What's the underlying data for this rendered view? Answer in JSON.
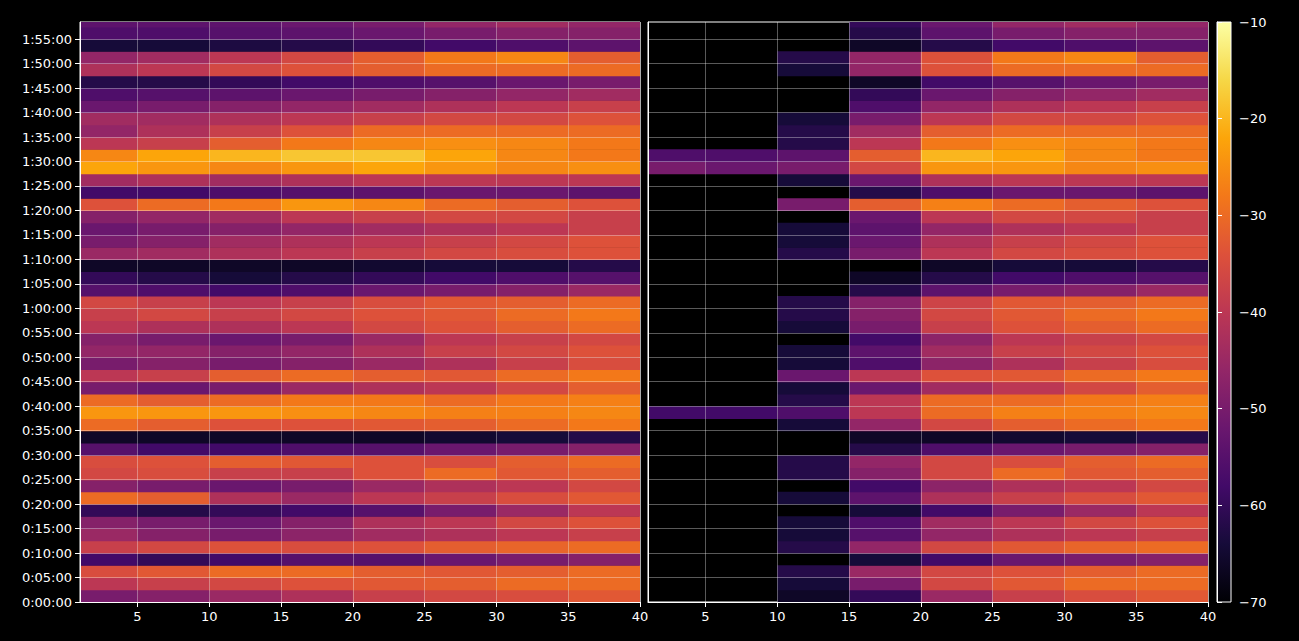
{
  "chart_data": {
    "type": "heatmap",
    "color": "inferno",
    "grid": true,
    "xlim": [
      1,
      40
    ],
    "xticks": [
      5,
      10,
      15,
      20,
      25,
      30,
      35,
      40
    ],
    "ylim": [
      0,
      7110
    ],
    "yticks": [
      {
        "value": 0,
        "label": "0:00:00"
      },
      {
        "value": 300,
        "label": "0:05:00"
      },
      {
        "value": 600,
        "label": "0:10:00"
      },
      {
        "value": 900,
        "label": "0:15:00"
      },
      {
        "value": 1200,
        "label": "0:20:00"
      },
      {
        "value": 1500,
        "label": "0:25:00"
      },
      {
        "value": 1800,
        "label": "0:30:00"
      },
      {
        "value": 2100,
        "label": "0:35:00"
      },
      {
        "value": 2400,
        "label": "0:40:00"
      },
      {
        "value": 2700,
        "label": "0:45:00"
      },
      {
        "value": 3000,
        "label": "0:50:00"
      },
      {
        "value": 3300,
        "label": "0:55:00"
      },
      {
        "value": 3600,
        "label": "1:00:00"
      },
      {
        "value": 3900,
        "label": "1:05:00"
      },
      {
        "value": 4200,
        "label": "1:10:00"
      },
      {
        "value": 4500,
        "label": "1:15:00"
      },
      {
        "value": 4800,
        "label": "1:20:00"
      },
      {
        "value": 5100,
        "label": "1:25:00"
      },
      {
        "value": 5400,
        "label": "1:30:00"
      },
      {
        "value": 5700,
        "label": "1:35:00"
      },
      {
        "value": 6000,
        "label": "1:40:00"
      },
      {
        "value": 6300,
        "label": "1:45:00"
      },
      {
        "value": 6600,
        "label": "1:50:00"
      },
      {
        "value": 6900,
        "label": "1:55:00"
      }
    ],
    "x_edges": [
      1,
      5,
      10,
      15,
      20,
      25,
      30,
      35,
      40
    ],
    "y_edges": [
      0,
      150,
      300,
      450,
      600,
      750,
      900,
      1050,
      1200,
      1350,
      1500,
      1650,
      1800,
      1950,
      2100,
      2250,
      2400,
      2550,
      2700,
      2850,
      3000,
      3150,
      3300,
      3450,
      3600,
      3750,
      3900,
      4050,
      4200,
      4350,
      4500,
      4650,
      4800,
      4950,
      5100,
      5250,
      5400,
      5550,
      5700,
      5850,
      6000,
      6150,
      6300,
      6450,
      6600,
      6750,
      6900,
      7050,
      7110
    ],
    "color_range": [
      -70,
      -10
    ],
    "color_ticks": [
      {
        "value": -70,
        "label": "−70"
      },
      {
        "value": -60,
        "label": "−60"
      },
      {
        "value": -50,
        "label": "−50"
      },
      {
        "value": -40,
        "label": "−40"
      },
      {
        "value": -30,
        "label": "−30"
      },
      {
        "value": -20,
        "label": "−20"
      },
      {
        "value": -10,
        "label": "−10"
      }
    ],
    "panels": [
      {
        "cells": [
          [
            -50,
            -48,
            -45,
            -42,
            -38,
            -36,
            -35,
            -33
          ],
          [
            -40,
            -38,
            -36,
            -34,
            -33,
            -32,
            -30,
            -30
          ],
          [
            -35,
            -33,
            -30,
            -30,
            -32,
            -33,
            -32,
            -30
          ],
          [
            -58,
            -60,
            -58,
            -55,
            -55,
            -52,
            -50,
            -48
          ],
          [
            -38,
            -36,
            -34,
            -35,
            -34,
            -32,
            -31,
            -30
          ],
          [
            -45,
            -48,
            -50,
            -47,
            -44,
            -42,
            -40,
            -38
          ],
          [
            -48,
            -50,
            -52,
            -48,
            -42,
            -40,
            -36,
            -34
          ],
          [
            -60,
            -62,
            -60,
            -58,
            -55,
            -50,
            -45,
            -40
          ],
          [
            -30,
            -32,
            -42,
            -45,
            -40,
            -38,
            -35,
            -33
          ],
          [
            -48,
            -50,
            -52,
            -50,
            -45,
            -42,
            -40,
            -36
          ],
          [
            -36,
            -35,
            -38,
            -38,
            -34,
            -30,
            -33,
            -32
          ],
          [
            -35,
            -34,
            -32,
            -33,
            -34,
            -35,
            -32,
            -30
          ],
          [
            -55,
            -58,
            -58,
            -56,
            -55,
            -52,
            -50,
            -48
          ],
          [
            -66,
            -66,
            -66,
            -66,
            -66,
            -65,
            -64,
            -62
          ],
          [
            -30,
            -32,
            -34,
            -34,
            -33,
            -32,
            -30,
            -28
          ],
          [
            -24,
            -24,
            -24,
            -25,
            -26,
            -27,
            -27,
            -26
          ],
          [
            -30,
            -32,
            -30,
            -28,
            -28,
            -30,
            -28,
            -27
          ],
          [
            -50,
            -52,
            -50,
            -45,
            -42,
            -40,
            -36,
            -32
          ],
          [
            -40,
            -38,
            -32,
            -30,
            -32,
            -33,
            -30,
            -28
          ],
          [
            -50,
            -48,
            -50,
            -48,
            -45,
            -42,
            -38,
            -35
          ],
          [
            -46,
            -46,
            -48,
            -46,
            -42,
            -38,
            -36,
            -34
          ],
          [
            -48,
            -50,
            -52,
            -50,
            -45,
            -40,
            -38,
            -36
          ],
          [
            -40,
            -42,
            -42,
            -40,
            -36,
            -34,
            -32,
            -30
          ],
          [
            -38,
            -36,
            -38,
            -36,
            -34,
            -33,
            -30,
            -28
          ],
          [
            -36,
            -38,
            -40,
            -38,
            -35,
            -33,
            -32,
            -30
          ],
          [
            -55,
            -56,
            -58,
            -56,
            -52,
            -50,
            -48,
            -45
          ],
          [
            -60,
            -62,
            -64,
            -62,
            -60,
            -58,
            -56,
            -55
          ],
          [
            -66,
            -66,
            -66,
            -66,
            -65,
            -64,
            -64,
            -62
          ],
          [
            -45,
            -44,
            -42,
            -40,
            -38,
            -36,
            -35,
            -34
          ],
          [
            -50,
            -48,
            -44,
            -42,
            -40,
            -38,
            -36,
            -34
          ],
          [
            -52,
            -50,
            -48,
            -46,
            -44,
            -42,
            -40,
            -38
          ],
          [
            -48,
            -46,
            -44,
            -40,
            -38,
            -36,
            -36,
            -38
          ],
          [
            -34,
            -30,
            -28,
            -24,
            -26,
            -30,
            -32,
            -34
          ],
          [
            -58,
            -58,
            -56,
            -55,
            -54,
            -52,
            -52,
            -54
          ],
          [
            -44,
            -42,
            -44,
            -42,
            -40,
            -40,
            -40,
            -40
          ],
          [
            -22,
            -24,
            -26,
            -24,
            -22,
            -24,
            -26,
            -25
          ],
          [
            -26,
            -22,
            -20,
            -18,
            -18,
            -22,
            -26,
            -28
          ],
          [
            -40,
            -38,
            -32,
            -28,
            -26,
            -25,
            -26,
            -28
          ],
          [
            -46,
            -42,
            -38,
            -34,
            -30,
            -30,
            -30,
            -30
          ],
          [
            -44,
            -44,
            -42,
            -40,
            -38,
            -36,
            -36,
            -34
          ],
          [
            -52,
            -50,
            -48,
            -46,
            -44,
            -42,
            -40,
            -38
          ],
          [
            -56,
            -55,
            -54,
            -52,
            -50,
            -48,
            -46,
            -44
          ],
          [
            -62,
            -62,
            -60,
            -58,
            -56,
            -55,
            -52,
            -50
          ],
          [
            -42,
            -40,
            -36,
            -34,
            -32,
            -30,
            -30,
            -30
          ],
          [
            -46,
            -44,
            -40,
            -36,
            -32,
            -28,
            -26,
            -32
          ],
          [
            -64,
            -64,
            -63,
            -62,
            -60,
            -58,
            -56,
            -54
          ],
          [
            -56,
            -56,
            -55,
            -54,
            -52,
            -50,
            -48,
            -48
          ],
          [
            -54,
            -54,
            -54,
            -52,
            -50,
            -46,
            -44,
            -46
          ]
        ]
      },
      {
        "cells": [
          [
            null,
            null,
            -66,
            -60,
            -45,
            -38,
            -35,
            -33
          ],
          [
            null,
            null,
            -64,
            -50,
            -36,
            -33,
            -30,
            -30
          ],
          [
            null,
            null,
            -62,
            -45,
            -36,
            -34,
            -32,
            -30
          ],
          [
            null,
            null,
            null,
            -64,
            -58,
            -52,
            -50,
            -48
          ],
          [
            null,
            null,
            -62,
            -46,
            -36,
            -33,
            -31,
            -30
          ],
          [
            null,
            null,
            -64,
            -55,
            -46,
            -42,
            -40,
            -38
          ],
          [
            null,
            null,
            -64,
            -56,
            -44,
            -40,
            -36,
            -34
          ],
          [
            null,
            null,
            null,
            -64,
            -58,
            -50,
            -45,
            -40
          ],
          [
            null,
            null,
            -64,
            -54,
            -42,
            -38,
            -35,
            -33
          ],
          [
            null,
            null,
            null,
            -58,
            -47,
            -42,
            -40,
            -36
          ],
          [
            null,
            null,
            -62,
            -48,
            -36,
            -30,
            -33,
            -32
          ],
          [
            null,
            null,
            -62,
            -46,
            -36,
            -35,
            -32,
            -30
          ],
          [
            null,
            null,
            null,
            -62,
            -56,
            -52,
            -50,
            -48
          ],
          [
            null,
            null,
            null,
            -66,
            -66,
            -65,
            -64,
            -62
          ],
          [
            null,
            null,
            -64,
            -46,
            -36,
            -32,
            -30,
            -28
          ],
          [
            -58,
            -58,
            -56,
            -40,
            -30,
            -27,
            -27,
            -26
          ],
          [
            null,
            null,
            -62,
            -40,
            -30,
            -30,
            -28,
            -27
          ],
          [
            null,
            null,
            -64,
            -52,
            -44,
            -40,
            -36,
            -32
          ],
          [
            null,
            null,
            -52,
            -40,
            -34,
            -33,
            -30,
            -28
          ],
          [
            null,
            null,
            -64,
            -56,
            -47,
            -42,
            -38,
            -35
          ],
          [
            null,
            null,
            -64,
            -54,
            -44,
            -38,
            -36,
            -34
          ],
          [
            null,
            null,
            null,
            -58,
            -47,
            -40,
            -38,
            -36
          ],
          [
            null,
            null,
            -64,
            -50,
            -38,
            -34,
            -32,
            -30
          ],
          [
            null,
            null,
            -62,
            -48,
            -36,
            -33,
            -30,
            -28
          ],
          [
            null,
            null,
            -62,
            -48,
            -37,
            -33,
            -32,
            -30
          ],
          [
            null,
            null,
            null,
            -62,
            -54,
            -50,
            -48,
            -45
          ],
          [
            null,
            null,
            null,
            -66,
            -62,
            -58,
            -56,
            -55
          ],
          [
            null,
            null,
            null,
            null,
            -66,
            -64,
            -64,
            -62
          ],
          [
            null,
            null,
            -62,
            -50,
            -40,
            -36,
            -35,
            -34
          ],
          [
            null,
            null,
            -64,
            -52,
            -42,
            -38,
            -36,
            -34
          ],
          [
            null,
            null,
            -64,
            -54,
            -46,
            -42,
            -40,
            -38
          ],
          [
            null,
            null,
            null,
            -52,
            -40,
            -36,
            -36,
            -38
          ],
          [
            null,
            null,
            -50,
            -32,
            -27,
            -30,
            -32,
            -34
          ],
          [
            null,
            null,
            null,
            -62,
            -56,
            -52,
            -52,
            -54
          ],
          [
            null,
            null,
            -64,
            -52,
            -42,
            -40,
            -40,
            -40
          ],
          [
            -50,
            -52,
            -50,
            -36,
            -24,
            -24,
            -26,
            -25
          ],
          [
            -56,
            -56,
            -54,
            -32,
            -20,
            -22,
            -26,
            -28
          ],
          [
            null,
            null,
            -62,
            -40,
            -28,
            -25,
            -26,
            -28
          ],
          [
            null,
            null,
            -62,
            -44,
            -32,
            -30,
            -30,
            -30
          ],
          [
            null,
            null,
            -64,
            -50,
            -40,
            -36,
            -36,
            -34
          ],
          [
            null,
            null,
            null,
            -56,
            -46,
            -42,
            -40,
            -38
          ],
          [
            null,
            null,
            null,
            -60,
            -52,
            -48,
            -46,
            -44
          ],
          [
            null,
            null,
            null,
            -66,
            -58,
            -55,
            -52,
            -50
          ],
          [
            null,
            null,
            -64,
            -46,
            -34,
            -30,
            -30,
            -30
          ],
          [
            null,
            null,
            -62,
            -46,
            -34,
            -28,
            -26,
            -32
          ],
          [
            null,
            null,
            null,
            -66,
            -62,
            -58,
            -56,
            -54
          ],
          [
            null,
            null,
            null,
            -62,
            -54,
            -50,
            -48,
            -48
          ],
          [
            null,
            null,
            null,
            -60,
            -52,
            -46,
            -44,
            -46
          ]
        ]
      }
    ]
  }
}
